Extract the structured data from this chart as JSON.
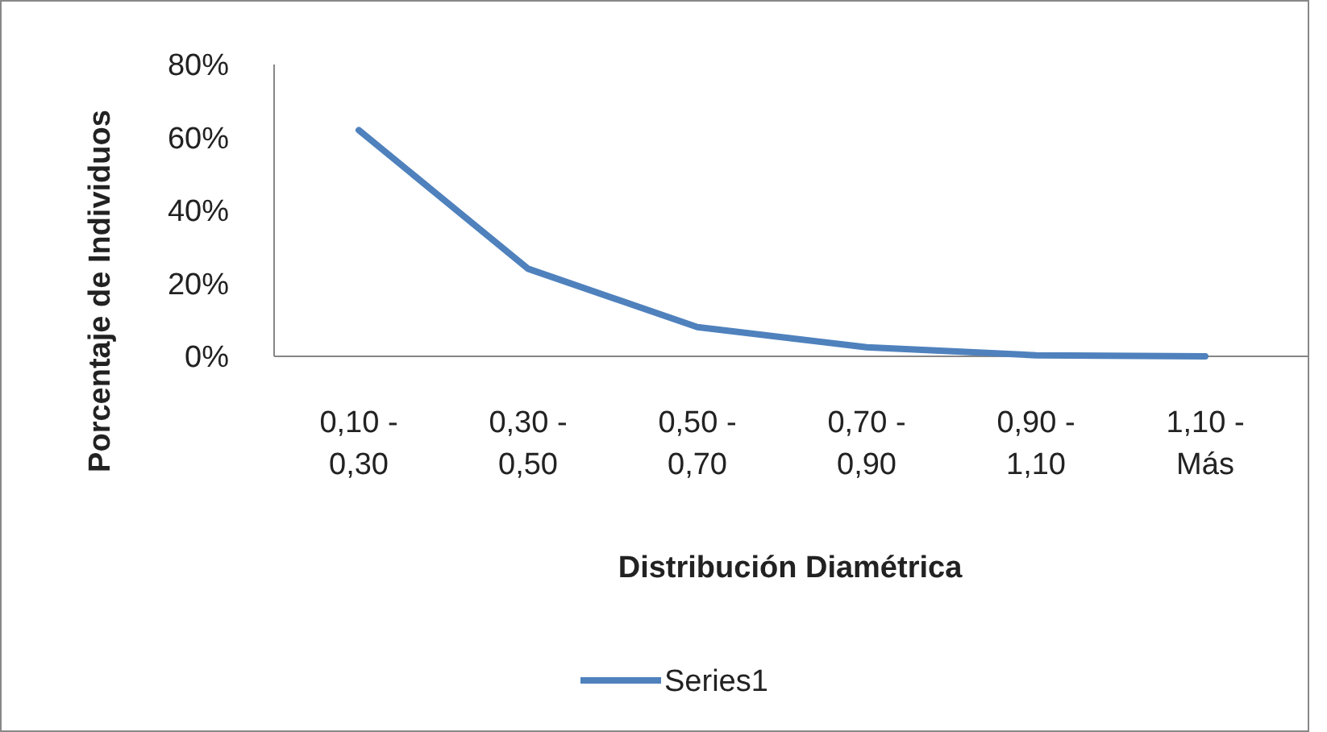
{
  "chart_data": {
    "type": "line",
    "xlabel": "Distribución Diamétrica",
    "ylabel": "Porcentaje de Individuos",
    "categories": [
      "0,10 - 0,30",
      "0,30 - 0,50",
      "0,50 - 0,70",
      "0,70 - 0,90",
      "0,90 - 1,10",
      "1,10 - Más"
    ],
    "series": [
      {
        "name": "Series1",
        "color": "#4f81bd",
        "values": [
          62,
          24,
          8,
          2.5,
          0.3,
          0
        ]
      }
    ],
    "ylim": [
      0,
      80
    ],
    "yticks": [
      {
        "value": 0,
        "label": "0%"
      },
      {
        "value": 20,
        "label": "20%"
      },
      {
        "value": 40,
        "label": "40%"
      },
      {
        "value": 60,
        "label": "60%"
      },
      {
        "value": 80,
        "label": "80%"
      }
    ],
    "grid": false,
    "legend": "bottom",
    "marker": "none",
    "line_style": "solid"
  }
}
